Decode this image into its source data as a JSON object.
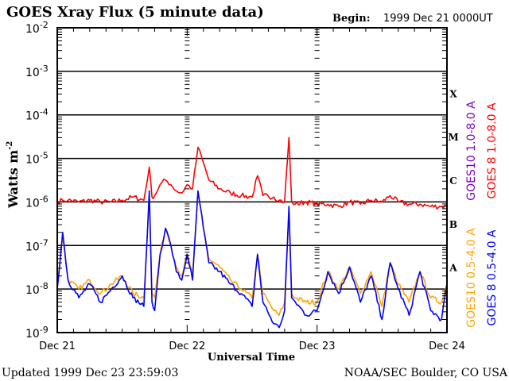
{
  "chart_data": {
    "type": "line",
    "title": "GOES Xray Flux (5 minute data)",
    "begin_label": "Begin:",
    "begin_value": "1999 Dec 21 0000UT",
    "xlabel": "Universal Time",
    "ylabel": "Watts m",
    "ylabel_sup": "-2",
    "y_scale": "log",
    "ylim": [
      1e-09,
      0.01
    ],
    "xlim": [
      "1999-12-21T00:00",
      "1999-12-24T00:00"
    ],
    "x_ticks": [
      {
        "t": "1999-12-21T00:00",
        "label": "Dec 21"
      },
      {
        "t": "1999-12-22T00:00",
        "label": "Dec 22"
      },
      {
        "t": "1999-12-23T00:00",
        "label": "Dec 23"
      },
      {
        "t": "1999-12-24T00:00",
        "label": "Dec 24"
      }
    ],
    "y_ticks": [
      {
        "v": 0.01,
        "base": "10",
        "exp": "-2"
      },
      {
        "v": 0.001,
        "base": "10",
        "exp": "-3"
      },
      {
        "v": 0.0001,
        "base": "10",
        "exp": "-4"
      },
      {
        "v": 1e-05,
        "base": "10",
        "exp": "-5"
      },
      {
        "v": 1e-06,
        "base": "10",
        "exp": "-6"
      },
      {
        "v": 1e-07,
        "base": "10",
        "exp": "-7"
      },
      {
        "v": 1e-08,
        "base": "10",
        "exp": "-8"
      },
      {
        "v": 1e-09,
        "base": "10",
        "exp": "-9"
      }
    ],
    "grid": "horizontal lines at each decade",
    "flare_classes": [
      {
        "label": "X",
        "lo": 0.0001,
        "hi": 0.001
      },
      {
        "label": "M",
        "lo": 1e-05,
        "hi": 0.0001
      },
      {
        "label": "C",
        "lo": 1e-06,
        "hi": 1e-05
      },
      {
        "label": "B",
        "lo": 1e-07,
        "hi": 1e-06
      },
      {
        "label": "A",
        "lo": 1e-08,
        "hi": 1e-07
      }
    ],
    "legend_placement": "right, vertical",
    "legend": [
      {
        "name": "GOES10 1.0-8.0 A",
        "color": "#7f00d0",
        "col": 0,
        "pos": "top"
      },
      {
        "name": "GOES 8 1.0-8.0 A",
        "color": "#ff0000",
        "col": 1,
        "pos": "top"
      },
      {
        "name": "GOES10 0.5-4.0 A",
        "color": "#ffa500",
        "col": 0,
        "pos": "bottom"
      },
      {
        "name": "GOES 8 0.5-4.0 A",
        "color": "#0000ff",
        "col": 1,
        "pos": "bottom"
      }
    ],
    "x": [
      "1999-12-21T00:00",
      "1999-12-21T01:00",
      "1999-12-21T02:00",
      "1999-12-21T04:00",
      "1999-12-21T06:00",
      "1999-12-21T08:00",
      "1999-12-21T10:00",
      "1999-12-21T12:00",
      "1999-12-21T14:00",
      "1999-12-21T16:00",
      "1999-12-21T17:00",
      "1999-12-21T17:30",
      "1999-12-21T18:00",
      "1999-12-21T19:00",
      "1999-12-21T20:00",
      "1999-12-21T21:00",
      "1999-12-21T22:00",
      "1999-12-21T23:00",
      "1999-12-22T00:00",
      "1999-12-22T01:00",
      "1999-12-22T02:00",
      "1999-12-22T03:00",
      "1999-12-22T04:00",
      "1999-12-22T06:00",
      "1999-12-22T08:00",
      "1999-12-22T10:00",
      "1999-12-22T12:00",
      "1999-12-22T13:00",
      "1999-12-22T14:00",
      "1999-12-22T16:00",
      "1999-12-22T17:00",
      "1999-12-22T18:00",
      "1999-12-22T18:48",
      "1999-12-22T19:18",
      "1999-12-22T20:00",
      "1999-12-22T22:00",
      "1999-12-23T00:00",
      "1999-12-23T02:00",
      "1999-12-23T04:00",
      "1999-12-23T06:00",
      "1999-12-23T08:00",
      "1999-12-23T10:00",
      "1999-12-23T12:00",
      "1999-12-23T13:30",
      "1999-12-23T15:00",
      "1999-12-23T17:00",
      "1999-12-23T19:00",
      "1999-12-23T21:00",
      "1999-12-23T23:00",
      "1999-12-24T00:00"
    ],
    "series": [
      {
        "name": "GOES 8 1.0-8.0 A",
        "color": "#ff0000",
        "values": [
          1e-06,
          1.1e-06,
          1.1e-06,
          1e-06,
          1.1e-06,
          1e-06,
          1e-06,
          1.1e-06,
          1.3e-06,
          1.1e-06,
          6.3e-06,
          1.3e-06,
          1.4e-06,
          2.5e-06,
          3.2e-06,
          2.5e-06,
          1.8e-06,
          1.6e-06,
          2.5e-06,
          2e-06,
          1.8e-05,
          7.9e-06,
          3.2e-06,
          2e-06,
          1.6e-06,
          1.4e-06,
          1.3e-06,
          4e-06,
          1.4e-06,
          1.3e-06,
          1.1e-06,
          1e-06,
          3e-05,
          1e-06,
          8.9e-07,
          1e-06,
          8.9e-07,
          8.9e-07,
          7.9e-07,
          1e-06,
          8.9e-07,
          1.1e-06,
          1e-06,
          1.4e-06,
          1e-06,
          8.9e-07,
          8.9e-07,
          7.9e-07,
          7.9e-07,
          7.9e-07
        ]
      },
      {
        "name": "GOES10 0.5-4.0 A",
        "color": "#ffa500",
        "values": [
          1.3e-08,
          1.6e-07,
          1.6e-08,
          1e-08,
          1.6e-08,
          7.9e-09,
          1.3e-08,
          2e-08,
          7.9e-09,
          6.3e-09,
          1.3e-06,
          7.9e-09,
          6.3e-09,
          6.3e-08,
          2.5e-07,
          1e-07,
          3.2e-08,
          2e-08,
          6.3e-08,
          2e-08,
          1.6e-06,
          2.5e-07,
          5e-08,
          3.2e-08,
          1.6e-08,
          1e-08,
          6.3e-09,
          6.3e-08,
          7.9e-09,
          3.2e-09,
          2.5e-09,
          5e-09,
          6.3e-07,
          7.9e-09,
          6.3e-09,
          5e-09,
          5e-09,
          2.5e-08,
          1e-08,
          3.2e-08,
          7.9e-09,
          2.5e-08,
          4e-09,
          4e-08,
          1.3e-08,
          5e-09,
          2.5e-08,
          6.3e-09,
          5e-09,
          1.3e-08
        ]
      },
      {
        "name": "GOES 8 0.5-4.0 A",
        "color": "#0000ff",
        "values": [
          1e-08,
          2e-07,
          1.6e-08,
          6.3e-09,
          1.3e-08,
          5e-09,
          1e-08,
          2e-08,
          6.3e-09,
          4e-09,
          1.8e-06,
          5e-09,
          3.2e-09,
          6.3e-08,
          2.5e-07,
          1e-07,
          2.5e-08,
          1.6e-08,
          6.3e-08,
          1.6e-08,
          1.8e-06,
          2.5e-07,
          4e-08,
          2.5e-08,
          1.3e-08,
          7.9e-09,
          4e-09,
          6.3e-08,
          5e-09,
          1.6e-09,
          1.3e-09,
          3.2e-09,
          7.9e-07,
          6.3e-09,
          5e-09,
          2.5e-09,
          3.2e-09,
          2.5e-08,
          7.9e-09,
          3.2e-08,
          5e-09,
          2e-08,
          2e-09,
          4e-08,
          1e-08,
          2.5e-09,
          2.5e-08,
          3.2e-09,
          2e-09,
          1.3e-08
        ]
      }
    ]
  },
  "footer": {
    "updated": "Updated 1999 Dec 23 23:59:03",
    "source": "NOAA/SEC Boulder, CO USA"
  }
}
